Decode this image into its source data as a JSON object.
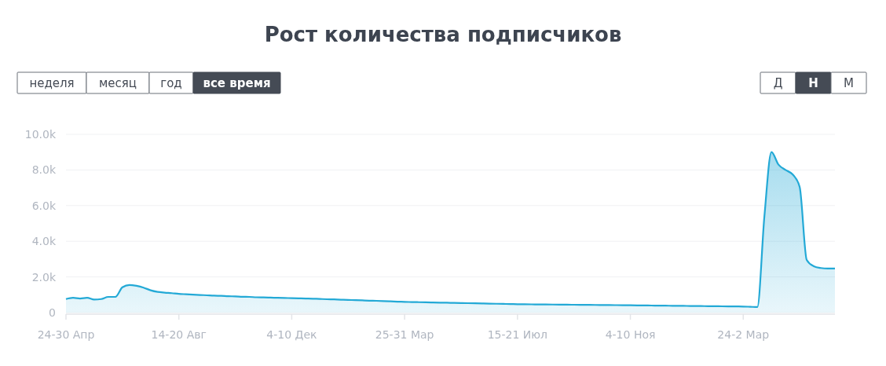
{
  "chart_data": {
    "type": "area",
    "title": "Рост количества подписчиков",
    "annotations": [
      "неделя",
      "месяц",
      "год",
      "все время",
      "Д",
      "Н",
      "М"
    ],
    "categories": [
      "24-30 Апр",
      null,
      null,
      null,
      null,
      null,
      null,
      null,
      null,
      null,
      null,
      null,
      null,
      null,
      null,
      null,
      "14-20 Авг",
      null,
      null,
      null,
      null,
      null,
      null,
      null,
      null,
      null,
      null,
      null,
      null,
      null,
      null,
      null,
      "4-10 Дек",
      null,
      null,
      null,
      null,
      null,
      null,
      null,
      null,
      null,
      null,
      null,
      null,
      null,
      null,
      null,
      "25-31 Мар",
      null,
      null,
      null,
      null,
      null,
      null,
      null,
      null,
      null,
      null,
      null,
      null,
      null,
      null,
      null,
      "15-21 Июл",
      null,
      null,
      null,
      null,
      null,
      null,
      null,
      null,
      null,
      null,
      null,
      null,
      null,
      null,
      null,
      "4-10 Ноя",
      null,
      null,
      null,
      null,
      null,
      null,
      null,
      null,
      null,
      null,
      null,
      null,
      null,
      null,
      null,
      "24-2 Мар",
      null,
      null,
      null,
      null,
      null,
      null,
      null,
      null,
      null,
      null,
      null,
      null,
      null
    ],
    "series": [
      {
        "color": "#23a9d6",
        "values": [
          760,
          830,
          790,
          830,
          730,
          760,
          880,
          880,
          1420,
          1550,
          1500,
          1400,
          1250,
          1160,
          1120,
          1090,
          1050,
          1030,
          1010,
          990,
          970,
          950,
          940,
          920,
          910,
          890,
          880,
          860,
          850,
          840,
          830,
          820,
          810,
          800,
          790,
          780,
          765,
          750,
          740,
          725,
          710,
          700,
          685,
          670,
          660,
          645,
          630,
          615,
          600,
          592,
          584,
          576,
          568,
          560,
          552,
          544,
          536,
          528,
          520,
          512,
          504,
          496,
          488,
          480,
          470,
          466,
          462,
          459,
          455,
          451,
          447,
          444,
          440,
          436,
          432,
          429,
          425,
          421,
          418,
          414,
          410,
          406,
          401,
          397,
          392,
          388,
          384,
          379,
          375,
          370,
          366,
          362,
          357,
          353,
          348,
          344,
          340,
          325,
          310,
          5400,
          9000,
          8300,
          8000,
          7750,
          7050,
          2950,
          2600,
          2500,
          2470,
          2470
        ]
      }
    ],
    "ylim": [
      0,
      10000
    ],
    "yticks": [
      0,
      {
        "value": 2000,
        "label": "2.0k"
      },
      {
        "value": 4000,
        "label": "4.0k"
      },
      {
        "value": 6000,
        "label": "6.0k"
      },
      {
        "value": 8000,
        "label": "8.0k"
      },
      {
        "value": 10000,
        "label": "10.0k"
      }
    ],
    "grid": "y",
    "marker": "none",
    "line_style": "solid"
  }
}
